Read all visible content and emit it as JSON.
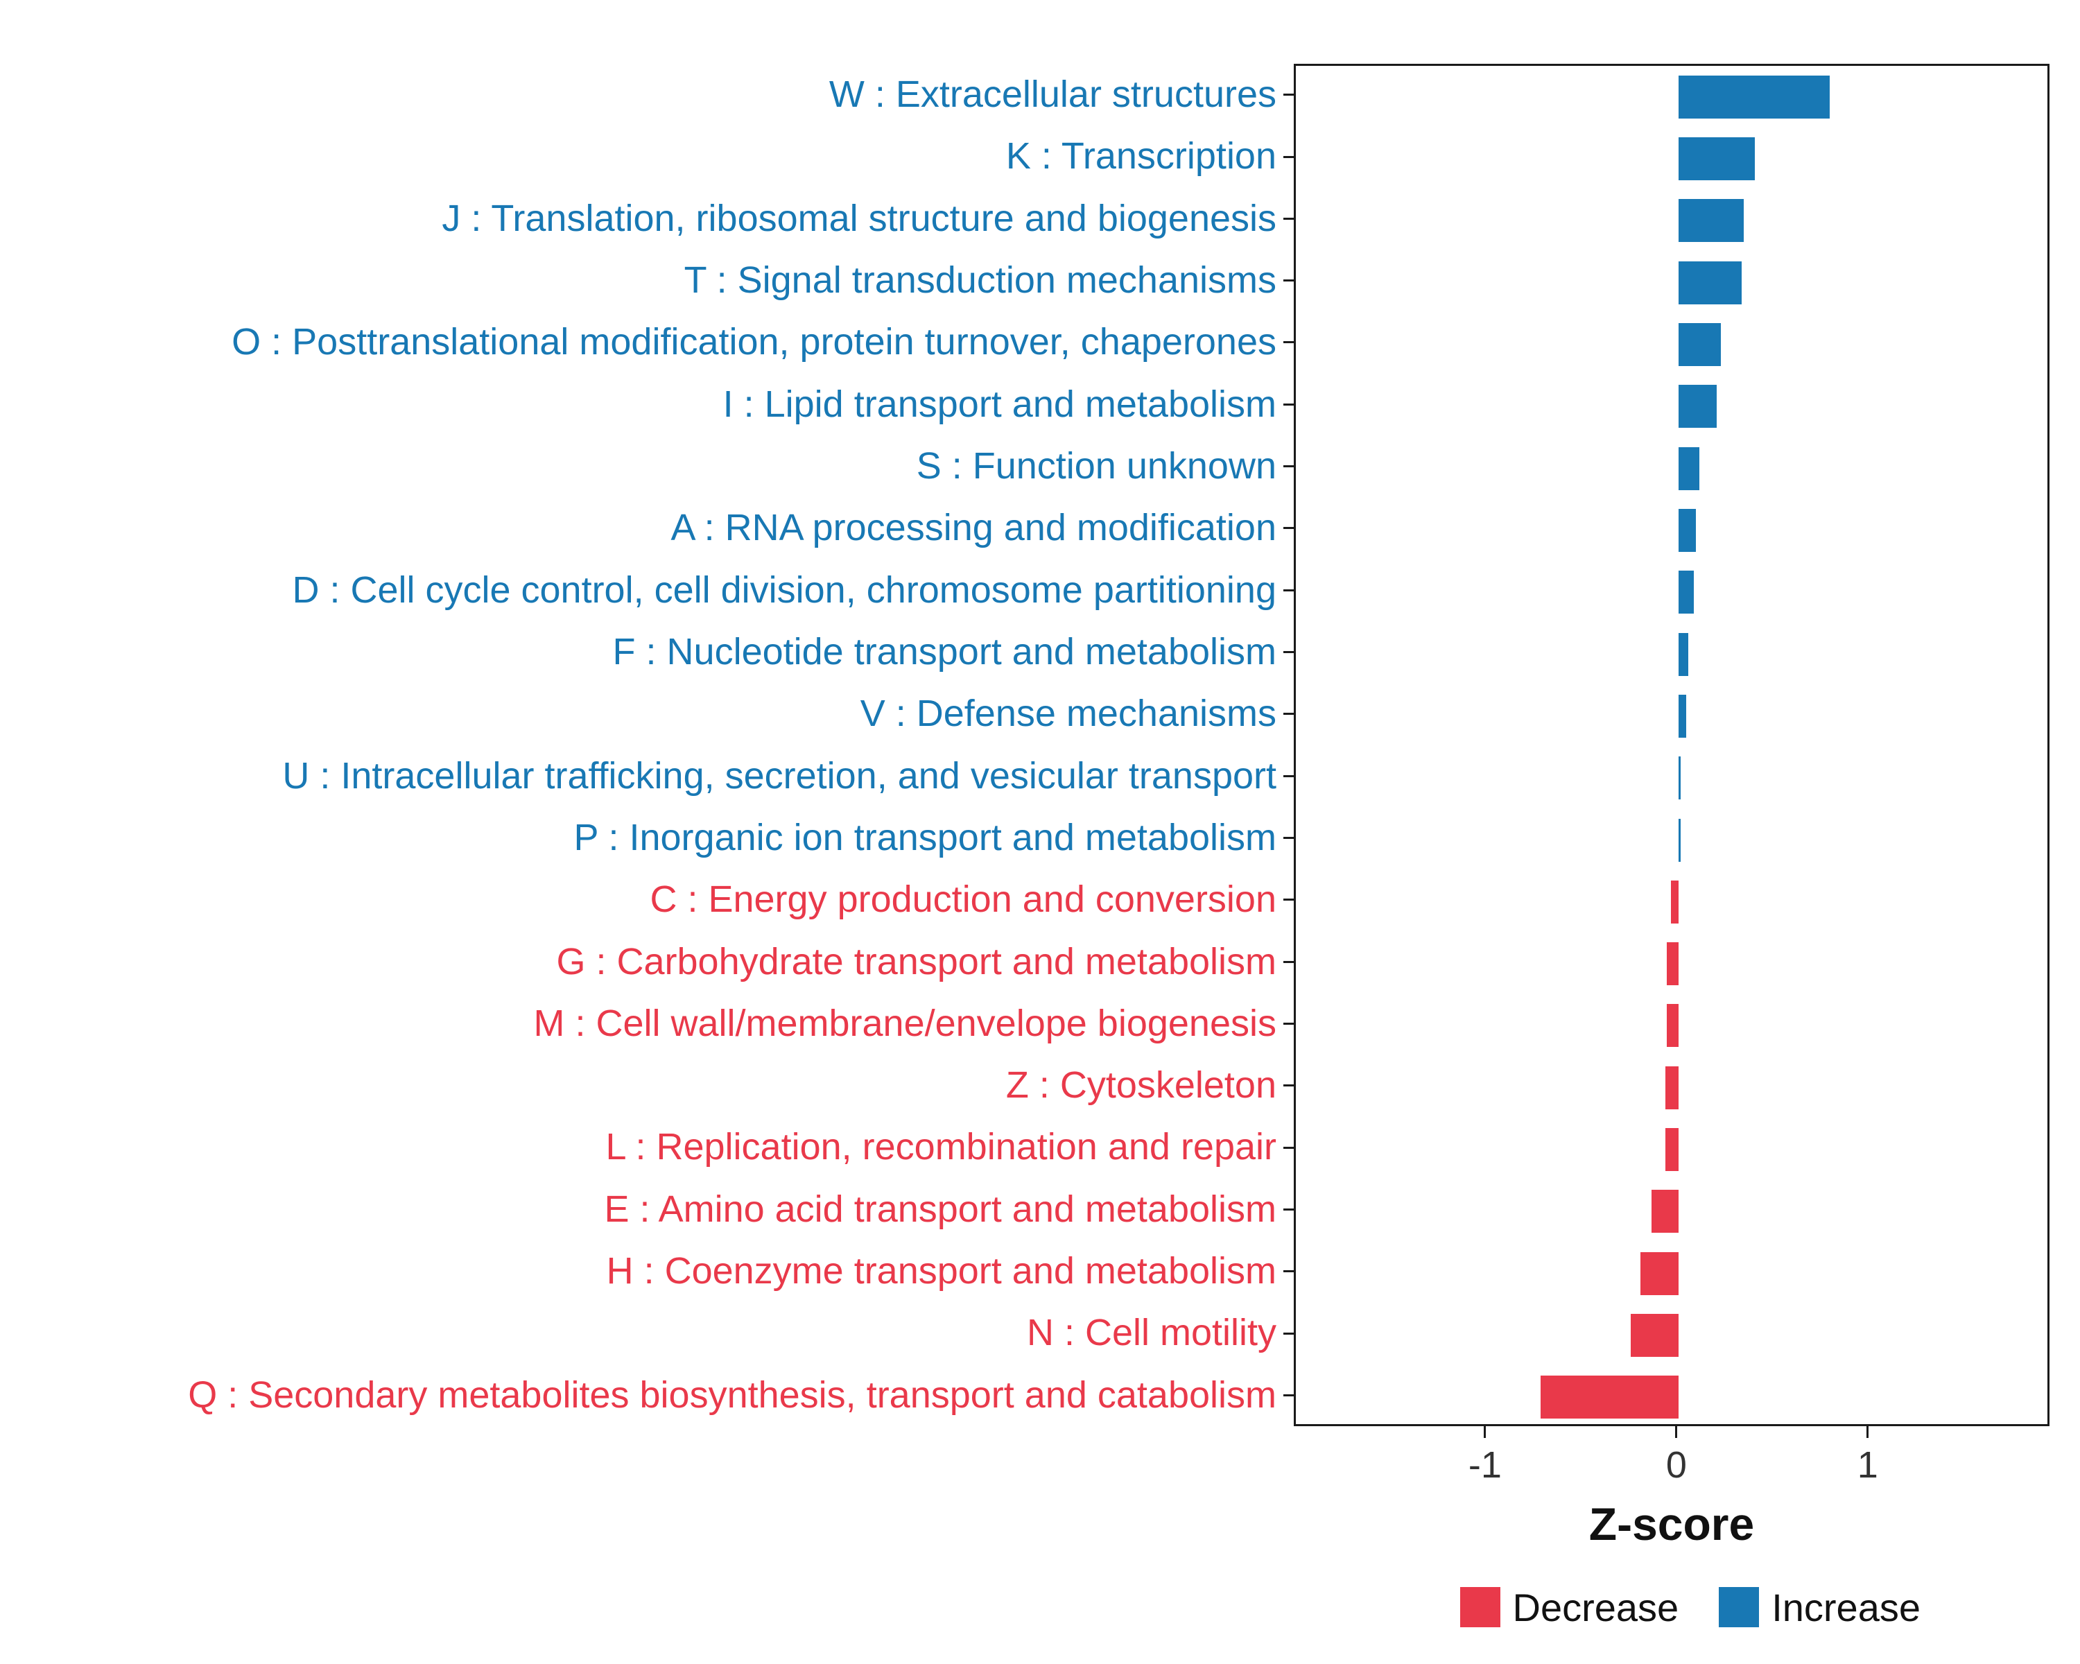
{
  "chart_data": {
    "type": "bar",
    "orientation": "horizontal",
    "title": "",
    "xlabel": "Z-score",
    "ylabel": "",
    "xlim": [
      -2,
      1.95
    ],
    "x_ticks": [
      "-1",
      "0",
      "1"
    ],
    "x_tick_values": [
      -1,
      0,
      1
    ],
    "grid": false,
    "legend_position": "bottom-right",
    "legend": {
      "decrease": "Decrease",
      "increase": "Increase"
    },
    "colors": {
      "increase": "#1878B4",
      "decrease": "#E9394A"
    },
    "categories": [
      {
        "label": "W : Extracellular structures",
        "value": 0.79,
        "group": "increase"
      },
      {
        "label": "K : Transcription",
        "value": 0.4,
        "group": "increase"
      },
      {
        "label": "J : Translation, ribosomal structure and biogenesis",
        "value": 0.34,
        "group": "increase"
      },
      {
        "label": "T : Signal transduction mechanisms",
        "value": 0.33,
        "group": "increase"
      },
      {
        "label": "O : Posttranslational modification, protein turnover, chaperones",
        "value": 0.22,
        "group": "increase"
      },
      {
        "label": "I : Lipid transport and metabolism",
        "value": 0.2,
        "group": "increase"
      },
      {
        "label": "S : Function unknown",
        "value": 0.11,
        "group": "increase"
      },
      {
        "label": "A : RNA processing and modification",
        "value": 0.09,
        "group": "increase"
      },
      {
        "label": "D : Cell cycle control, cell division, chromosome partitioning",
        "value": 0.08,
        "group": "increase"
      },
      {
        "label": "F : Nucleotide transport and metabolism",
        "value": 0.05,
        "group": "increase"
      },
      {
        "label": "V : Defense mechanisms",
        "value": 0.04,
        "group": "increase"
      },
      {
        "label": "U : Intracellular trafficking, secretion, and vesicular transport",
        "value": 0.01,
        "group": "increase"
      },
      {
        "label": "P : Inorganic ion transport and metabolism",
        "value": 0.01,
        "group": "increase"
      },
      {
        "label": "C : Energy production and conversion",
        "value": -0.04,
        "group": "decrease"
      },
      {
        "label": "G : Carbohydrate transport and metabolism",
        "value": -0.06,
        "group": "decrease"
      },
      {
        "label": "M : Cell wall/membrane/envelope biogenesis",
        "value": -0.06,
        "group": "decrease"
      },
      {
        "label": "Z : Cytoskeleton",
        "value": -0.07,
        "group": "decrease"
      },
      {
        "label": "L : Replication, recombination and repair",
        "value": -0.07,
        "group": "decrease"
      },
      {
        "label": "E : Amino acid transport and metabolism",
        "value": -0.14,
        "group": "decrease"
      },
      {
        "label": "H : Coenzyme transport and metabolism",
        "value": -0.2,
        "group": "decrease"
      },
      {
        "label": "N : Cell motility",
        "value": -0.25,
        "group": "decrease"
      },
      {
        "label": "Q : Secondary metabolites biosynthesis, transport and catabolism",
        "value": -0.72,
        "group": "decrease"
      }
    ]
  }
}
